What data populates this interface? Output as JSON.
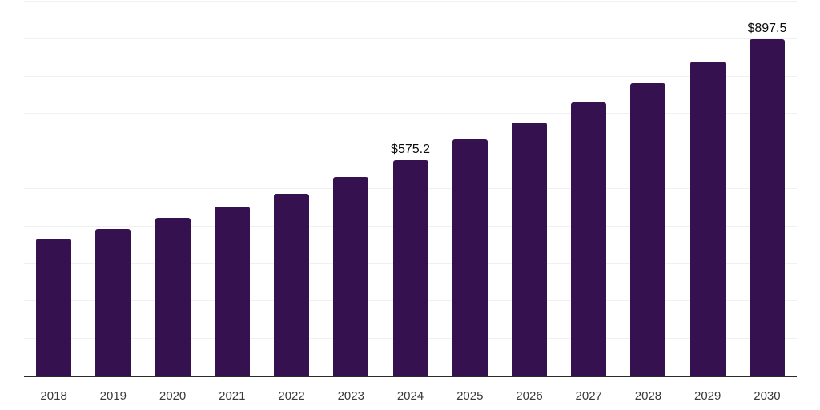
{
  "chart_data": {
    "type": "bar",
    "title": "",
    "xlabel": "",
    "ylabel": "",
    "categories": [
      "2018",
      "2019",
      "2020",
      "2021",
      "2022",
      "2023",
      "2024",
      "2025",
      "2026",
      "2027",
      "2028",
      "2029",
      "2030"
    ],
    "values": [
      366,
      392,
      421,
      451,
      486,
      531,
      575.2,
      631,
      676,
      728,
      781,
      838,
      897.5
    ],
    "data_labels": [
      {
        "category": "2024",
        "text": "$575.2"
      },
      {
        "category": "2030",
        "text": "$897.5"
      }
    ],
    "ylim": [
      0,
      1000
    ],
    "grid": "horizontal gridlines every 100, no y-axis tick labels",
    "legend": "none",
    "colors": {
      "bar": "#35114f",
      "axis_line": "#2b2b2b",
      "gridline": "#f0f0f0",
      "tick_label": "#3a3a3a",
      "data_label": "#0a0a0a",
      "background": "#ffffff"
    }
  }
}
